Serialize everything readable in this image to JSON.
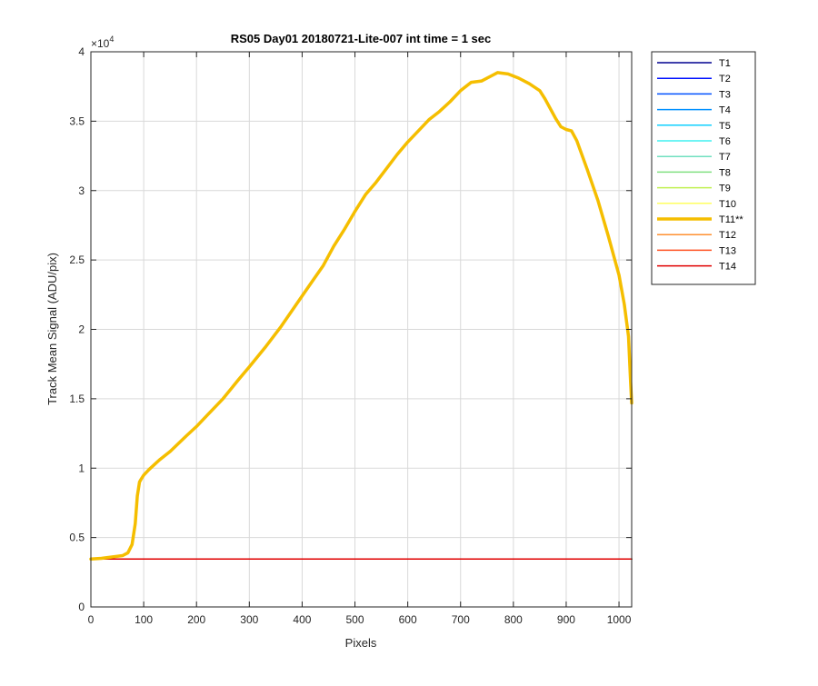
{
  "chart_data": {
    "type": "line",
    "title": "RS05 Day01 20180721-Lite-007 int time = 1 sec",
    "xlabel": "Pixels",
    "ylabel": "Track Mean Signal (ADU/pix)",
    "y_exponent_label": "×10",
    "y_exponent_power": "4",
    "xlim": [
      0,
      1024
    ],
    "ylim": [
      0,
      4
    ],
    "x_ticks": [
      0,
      100,
      200,
      300,
      400,
      500,
      600,
      700,
      800,
      900,
      1000
    ],
    "x_tick_labels": [
      "0",
      "100",
      "200",
      "300",
      "400",
      "500",
      "600",
      "700",
      "800",
      "900",
      "1000"
    ],
    "y_ticks": [
      0,
      0.5,
      1,
      1.5,
      2,
      2.5,
      3,
      3.5,
      4
    ],
    "y_tick_labels": [
      "0",
      "0.5",
      "1",
      "1.5",
      "2",
      "2.5",
      "3",
      "3.5",
      "4"
    ],
    "grid": true,
    "legend_position": "outside-right-top",
    "series": [
      {
        "name": "T1",
        "color": "#00008f",
        "highlight": false,
        "x": [
          0,
          1024
        ],
        "y": [
          0.345,
          0.345
        ]
      },
      {
        "name": "T2",
        "color": "#0010ff",
        "highlight": false,
        "x": [
          0,
          1024
        ],
        "y": [
          0.345,
          0.345
        ]
      },
      {
        "name": "T3",
        "color": "#0050ff",
        "highlight": false,
        "x": [
          0,
          1024
        ],
        "y": [
          0.345,
          0.345
        ]
      },
      {
        "name": "T4",
        "color": "#0090ff",
        "highlight": false,
        "x": [
          0,
          1024
        ],
        "y": [
          0.345,
          0.345
        ]
      },
      {
        "name": "T5",
        "color": "#10d0ff",
        "highlight": false,
        "x": [
          0,
          1024
        ],
        "y": [
          0.345,
          0.345
        ]
      },
      {
        "name": "T6",
        "color": "#40f0f0",
        "highlight": false,
        "x": [
          0,
          1024
        ],
        "y": [
          0.345,
          0.345
        ]
      },
      {
        "name": "T7",
        "color": "#70e0c0",
        "highlight": false,
        "x": [
          0,
          1024
        ],
        "y": [
          0.345,
          0.345
        ]
      },
      {
        "name": "T8",
        "color": "#80e080",
        "highlight": false,
        "x": [
          0,
          1024
        ],
        "y": [
          0.345,
          0.345
        ]
      },
      {
        "name": "T9",
        "color": "#c0f050",
        "highlight": false,
        "x": [
          0,
          1024
        ],
        "y": [
          0.345,
          0.345
        ]
      },
      {
        "name": "T10",
        "color": "#ffff60",
        "highlight": false,
        "x": [
          0,
          1024
        ],
        "y": [
          0.345,
          0.345
        ]
      },
      {
        "name": "T11**",
        "color": "#f5be00",
        "highlight": true,
        "x": [
          0,
          20,
          40,
          60,
          70,
          78,
          84,
          88,
          92,
          95,
          100,
          110,
          130,
          150,
          180,
          200,
          220,
          250,
          280,
          300,
          330,
          360,
          400,
          420,
          440,
          460,
          480,
          500,
          520,
          540,
          560,
          580,
          600,
          620,
          640,
          660,
          680,
          700,
          720,
          740,
          760,
          770,
          790,
          810,
          830,
          850,
          860,
          880,
          890,
          900,
          910,
          920,
          940,
          960,
          980,
          1000,
          1010,
          1018,
          1022,
          1024
        ],
        "y": [
          0.345,
          0.35,
          0.36,
          0.37,
          0.39,
          0.45,
          0.6,
          0.8,
          0.9,
          0.92,
          0.95,
          0.99,
          1.06,
          1.12,
          1.23,
          1.3,
          1.38,
          1.5,
          1.64,
          1.73,
          1.87,
          2.02,
          2.24,
          2.35,
          2.46,
          2.6,
          2.72,
          2.85,
          2.97,
          3.06,
          3.16,
          3.26,
          3.35,
          3.43,
          3.51,
          3.57,
          3.64,
          3.72,
          3.78,
          3.79,
          3.83,
          3.85,
          3.84,
          3.81,
          3.77,
          3.72,
          3.66,
          3.52,
          3.46,
          3.44,
          3.43,
          3.36,
          3.15,
          2.93,
          2.67,
          2.39,
          2.18,
          1.95,
          1.62,
          1.47
        ]
      },
      {
        "name": "T12",
        "color": "#ff9030",
        "highlight": false,
        "x": [
          0,
          1024
        ],
        "y": [
          0.345,
          0.345
        ]
      },
      {
        "name": "T13",
        "color": "#ff5020",
        "highlight": false,
        "x": [
          0,
          1024
        ],
        "y": [
          0.345,
          0.345
        ]
      },
      {
        "name": "T14",
        "color": "#e00000",
        "highlight": false,
        "x": [
          0,
          1024
        ],
        "y": [
          0.345,
          0.345
        ]
      }
    ]
  }
}
